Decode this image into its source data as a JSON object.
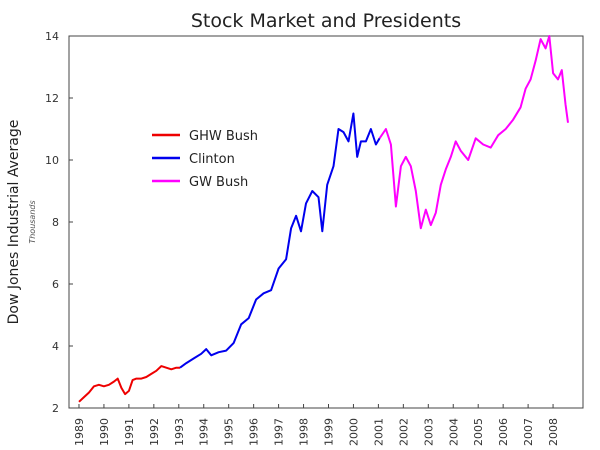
{
  "chart_data": {
    "type": "line",
    "title": "Stock Market and Presidents",
    "xlabel": "",
    "ylabel": "Dow Jones Industrial Average",
    "ylabel_unit": "Thousands",
    "xlim": [
      1988.6,
      2009.2
    ],
    "ylim": [
      2,
      14
    ],
    "y_ticks": [
      2,
      4,
      6,
      8,
      10,
      12,
      14
    ],
    "x_ticks": [
      1989,
      1990,
      1991,
      1992,
      1993,
      1994,
      1995,
      1996,
      1997,
      1998,
      1999,
      2000,
      2001,
      2002,
      2003,
      2004,
      2005,
      2006,
      2007,
      2008
    ],
    "grid": false,
    "legend_position": "upper-left",
    "series": [
      {
        "name": "GHW Bush",
        "color": "#ee0000",
        "x": [
          1989.0,
          1989.2,
          1989.4,
          1989.6,
          1989.8,
          1990.0,
          1990.2,
          1990.4,
          1990.55,
          1990.7,
          1990.85,
          1991.0,
          1991.15,
          1991.3,
          1991.5,
          1991.7,
          1991.9,
          1992.1,
          1992.3,
          1992.5,
          1992.7,
          1992.9,
          1993.05
        ],
        "y": [
          2.2,
          2.35,
          2.5,
          2.7,
          2.75,
          2.7,
          2.75,
          2.85,
          2.95,
          2.65,
          2.45,
          2.55,
          2.9,
          2.95,
          2.95,
          3.0,
          3.1,
          3.2,
          3.35,
          3.3,
          3.25,
          3.3,
          3.3
        ]
      },
      {
        "name": "Clinton",
        "color": "#0000ee",
        "x": [
          1993.05,
          1993.3,
          1993.6,
          1993.9,
          1994.1,
          1994.3,
          1994.6,
          1994.9,
          1995.2,
          1995.5,
          1995.8,
          1996.1,
          1996.4,
          1996.7,
          1997.0,
          1997.3,
          1997.5,
          1997.7,
          1997.9,
          1998.1,
          1998.35,
          1998.6,
          1998.75,
          1998.95,
          1999.2,
          1999.4,
          1999.6,
          1999.8,
          2000.0,
          2000.15,
          2000.3,
          2000.5,
          2000.7,
          2000.9,
          2001.05
        ],
        "y": [
          3.3,
          3.45,
          3.6,
          3.75,
          3.9,
          3.7,
          3.8,
          3.85,
          4.1,
          4.7,
          4.9,
          5.5,
          5.7,
          5.8,
          6.5,
          6.8,
          7.8,
          8.2,
          7.7,
          8.6,
          9.0,
          8.8,
          7.7,
          9.2,
          9.8,
          11.0,
          10.9,
          10.6,
          11.5,
          10.1,
          10.6,
          10.6,
          11.0,
          10.5,
          10.7
        ]
      },
      {
        "name": "GW Bush",
        "color": "#ff00ff",
        "x": [
          2001.05,
          2001.3,
          2001.5,
          2001.7,
          2001.9,
          2002.1,
          2002.3,
          2002.5,
          2002.7,
          2002.9,
          2003.1,
          2003.3,
          2003.5,
          2003.7,
          2003.9,
          2004.1,
          2004.3,
          2004.6,
          2004.9,
          2005.2,
          2005.5,
          2005.8,
          2006.1,
          2006.4,
          2006.7,
          2006.9,
          2007.1,
          2007.3,
          2007.5,
          2007.7,
          2007.85,
          2008.0,
          2008.2,
          2008.35,
          2008.5,
          2008.6
        ],
        "y": [
          10.7,
          11.0,
          10.5,
          8.5,
          9.8,
          10.1,
          9.8,
          9.0,
          7.8,
          8.4,
          7.9,
          8.3,
          9.2,
          9.7,
          10.1,
          10.6,
          10.3,
          10.0,
          10.7,
          10.5,
          10.4,
          10.8,
          11.0,
          11.3,
          11.7,
          12.3,
          12.6,
          13.2,
          13.9,
          13.6,
          14.0,
          12.8,
          12.6,
          12.9,
          11.8,
          11.2
        ]
      }
    ]
  }
}
